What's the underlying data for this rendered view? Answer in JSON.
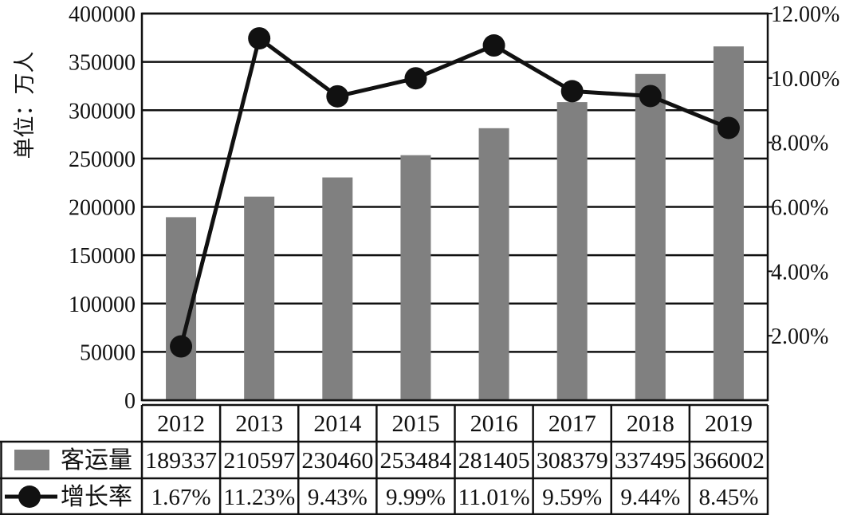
{
  "chart_data": {
    "type": "bar",
    "categories": [
      "2012",
      "2013",
      "2014",
      "2015",
      "2016",
      "2017",
      "2018",
      "2019"
    ],
    "series": [
      {
        "name": "客运量",
        "type": "bar",
        "axis": "left",
        "values": [
          189337,
          210597,
          230460,
          253484,
          281405,
          308379,
          337495,
          366002
        ],
        "color": "#808080"
      },
      {
        "name": "增长率",
        "type": "line",
        "axis": "right",
        "values": [
          1.67,
          11.23,
          9.43,
          9.99,
          11.01,
          9.59,
          9.44,
          8.45
        ],
        "color": "#111111"
      }
    ],
    "ylabel": "单位：万人",
    "ylim": [
      0,
      400000
    ],
    "yticks": [
      "0",
      "50000",
      "100000",
      "150000",
      "200000",
      "250000",
      "300000",
      "350000",
      "400000"
    ],
    "y2lim": [
      0,
      12
    ],
    "y2ticks": [
      "2.00%",
      "4.00%",
      "6.00%",
      "8.00%",
      "10.00%",
      "12.00%"
    ],
    "table": {
      "rows": [
        {
          "label": "客运量",
          "cells": [
            "189337",
            "210597",
            "230460",
            "253484",
            "281405",
            "308379",
            "337495",
            "366002"
          ]
        },
        {
          "label": "增长率",
          "cells": [
            "1.67%",
            "11.23%",
            "9.43%",
            "9.99%",
            "11.01%",
            "9.59%",
            "9.44%",
            "8.45%"
          ]
        }
      ]
    },
    "grid": true,
    "legend": "data-table"
  }
}
